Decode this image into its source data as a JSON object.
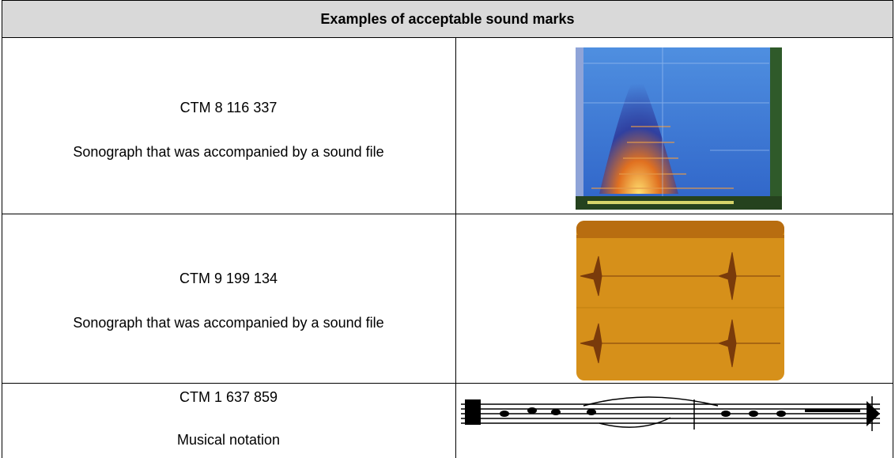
{
  "table": {
    "title": "Examples of acceptable sound marks",
    "rows": [
      {
        "id": "CTM 8 116 337",
        "description": "Sonograph that was accompanied by a sound file"
      },
      {
        "id": "CTM 9 199 134",
        "description": "Sonograph that was accompanied by a sound file"
      },
      {
        "id": "CTM 1 637 859",
        "description": "Musical notation"
      }
    ]
  }
}
